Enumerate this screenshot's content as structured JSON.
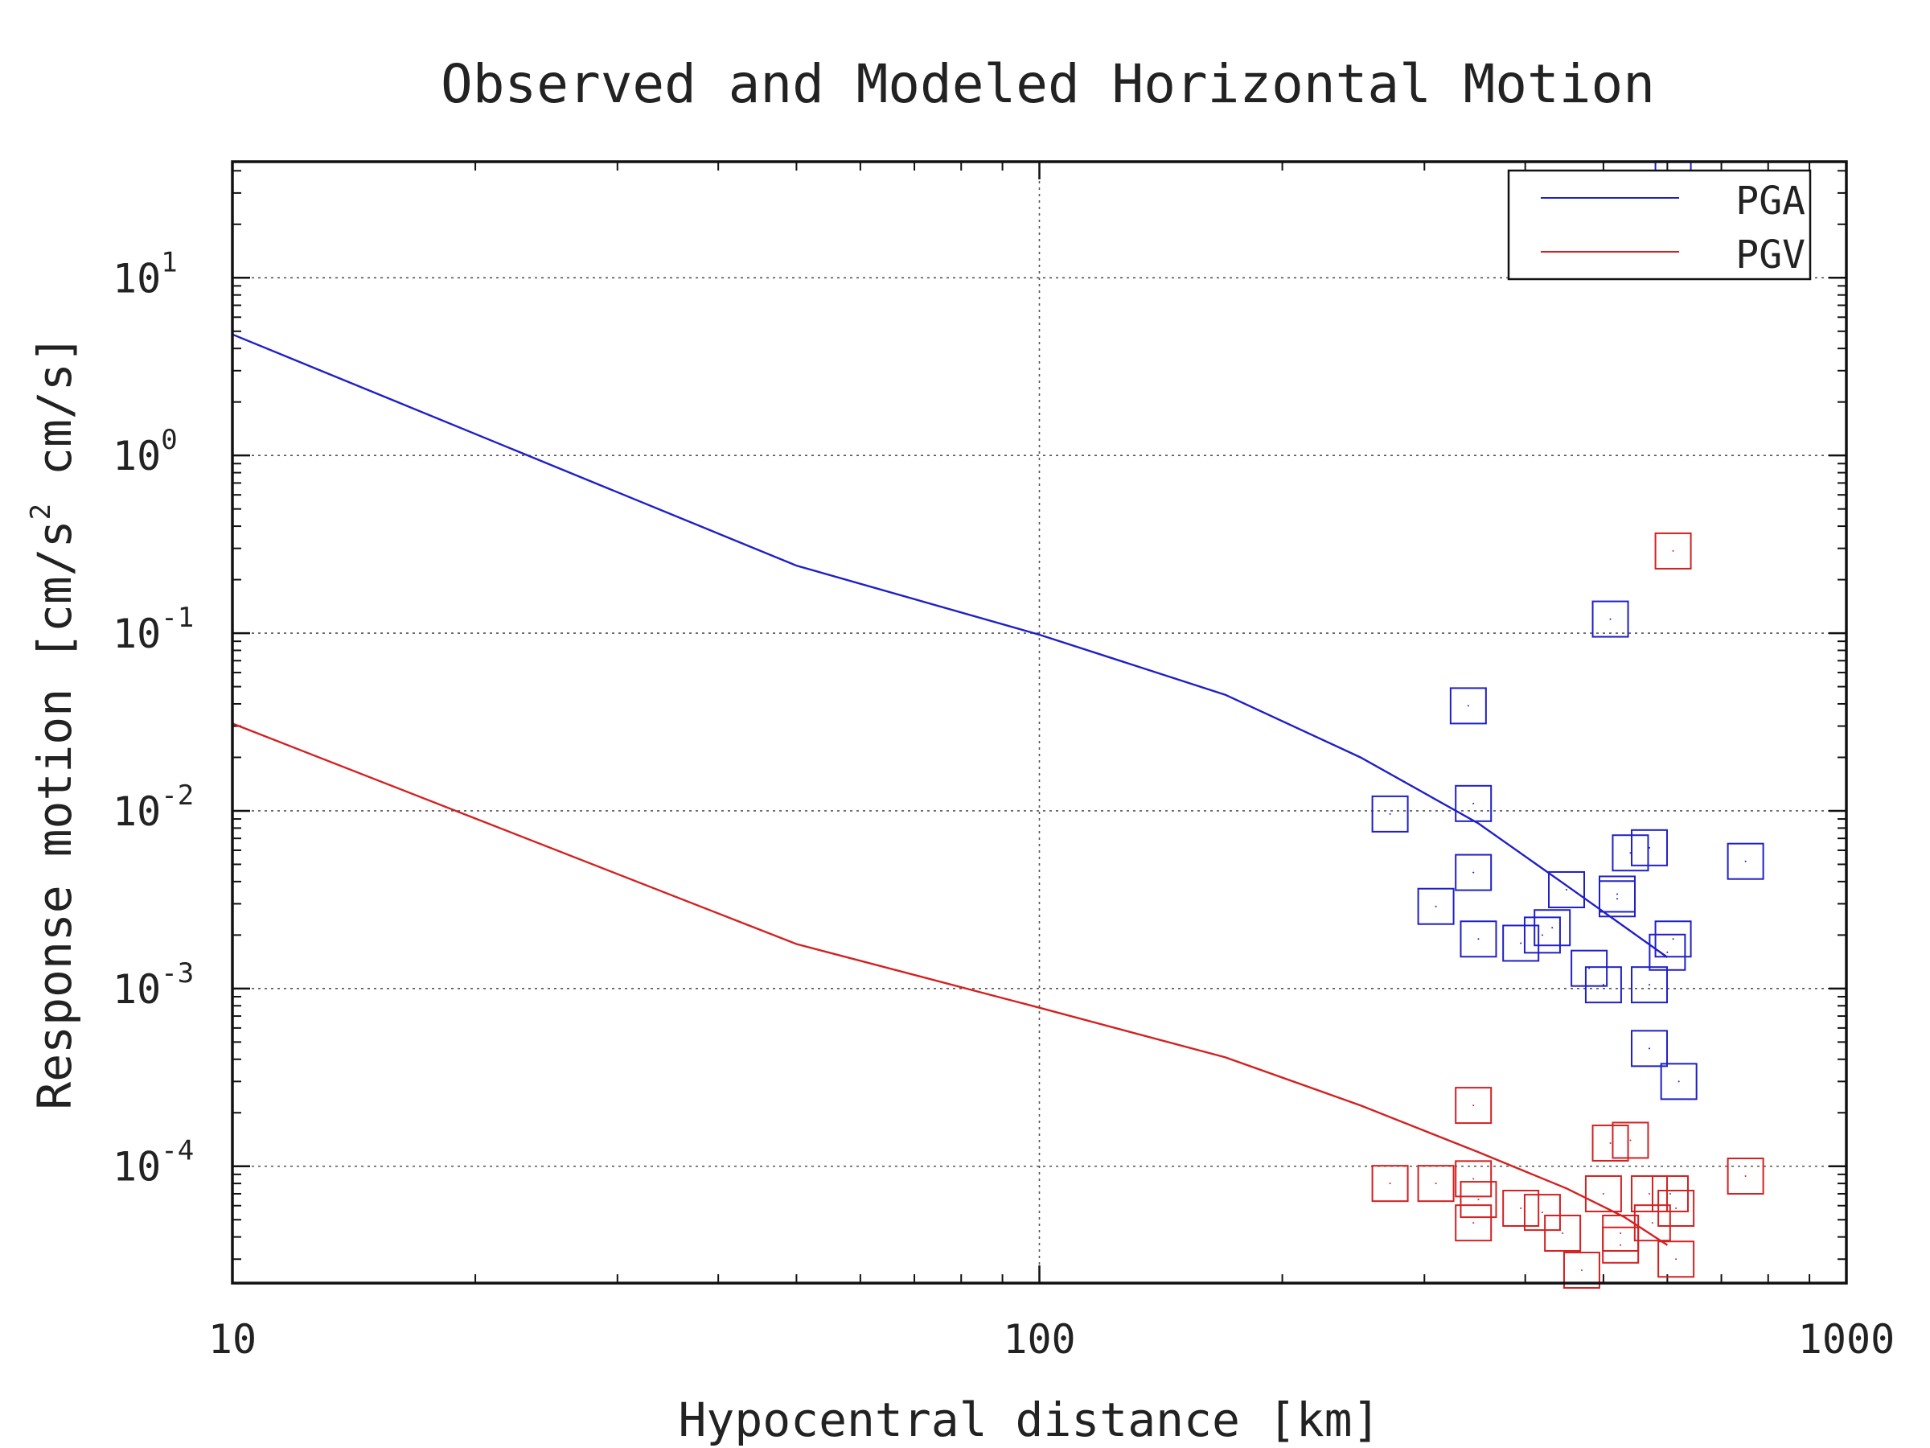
{
  "chart_data": {
    "type": "scatter",
    "title": "Observed and Modeled Horizontal Motion",
    "xlabel": "Hypocentral distance [km]",
    "ylabel": "Response motion [cm/s",
    "ylabel_sup": "2",
    "ylabel_tail": " cm/s]",
    "xscale": "log",
    "yscale": "log",
    "xlim": [
      10,
      1000
    ],
    "ylim": [
      2.2e-05,
      45
    ],
    "grid": true,
    "legend_position": "top-right",
    "x_ticks": [
      {
        "value": 10,
        "label": "10"
      },
      {
        "value": 100,
        "label": "100"
      },
      {
        "value": 1000,
        "label": "1000"
      }
    ],
    "y_ticks": [
      {
        "value": 0.0001,
        "base": "10",
        "exp": "-4"
      },
      {
        "value": 0.001,
        "base": "10",
        "exp": "-3"
      },
      {
        "value": 0.01,
        "base": "10",
        "exp": "-2"
      },
      {
        "value": 0.1,
        "base": "10",
        "exp": "-1"
      },
      {
        "value": 1,
        "base": "10",
        "exp": "0"
      },
      {
        "value": 10,
        "base": "10",
        "exp": "1"
      }
    ],
    "colors": {
      "PGA": "#1f1fc8",
      "PGV": "#d42020",
      "axis": "#111111",
      "grid": "#555555"
    },
    "series": [
      {
        "name": "PGA",
        "model": [
          [
            10,
            4.8
          ],
          [
            50,
            0.24
          ],
          [
            100,
            0.098
          ],
          [
            170,
            0.045
          ],
          [
            250,
            0.02
          ],
          [
            350,
            0.0085
          ],
          [
            450,
            0.0038
          ],
          [
            600,
            0.0015
          ]
        ],
        "observed": [
          [
            272,
            0.0096
          ],
          [
            310,
            0.0029
          ],
          [
            340,
            0.039
          ],
          [
            345,
            0.011
          ],
          [
            345,
            0.0045
          ],
          [
            350,
            0.0019
          ],
          [
            395,
            0.0018
          ],
          [
            420,
            0.002
          ],
          [
            432,
            0.0022
          ],
          [
            450,
            0.0036
          ],
          [
            480,
            0.0013
          ],
          [
            500,
            0.00105
          ],
          [
            510,
            0.12
          ],
          [
            520,
            0.0034
          ],
          [
            520,
            0.0032
          ],
          [
            540,
            0.0058
          ],
          [
            570,
            0.0062
          ],
          [
            570,
            0.00105
          ],
          [
            570,
            0.00046
          ],
          [
            600,
            0.0016
          ],
          [
            610,
            0.0019
          ],
          [
            620,
            0.0003
          ],
          [
            750,
            0.0052
          ],
          [
            610,
            36
          ]
        ]
      },
      {
        "name": "PGV",
        "model": [
          [
            10,
            0.031
          ],
          [
            50,
            0.00178
          ],
          [
            100,
            0.00078
          ],
          [
            170,
            0.00041
          ],
          [
            250,
            0.00022
          ],
          [
            350,
            0.00012
          ],
          [
            450,
            7.5e-05
          ],
          [
            530,
            5.2e-05
          ],
          [
            600,
            3.6e-05
          ]
        ],
        "observed": [
          [
            272,
            8e-05
          ],
          [
            310,
            8e-05
          ],
          [
            345,
            0.00022
          ],
          [
            345,
            8.5e-05
          ],
          [
            350,
            6.5e-05
          ],
          [
            345,
            4.8e-05
          ],
          [
            395,
            5.8e-05
          ],
          [
            420,
            5.5e-05
          ],
          [
            445,
            4.2e-05
          ],
          [
            470,
            2.6e-05
          ],
          [
            500,
            7e-05
          ],
          [
            510,
            0.000135
          ],
          [
            525,
            4.2e-05
          ],
          [
            525,
            3.6e-05
          ],
          [
            540,
            0.00014
          ],
          [
            570,
            7e-05
          ],
          [
            575,
            4.8e-05
          ],
          [
            605,
            7e-05
          ],
          [
            615,
            5.8e-05
          ],
          [
            615,
            3e-05
          ],
          [
            750,
            8.8e-05
          ],
          [
            610,
            0.29
          ]
        ]
      }
    ]
  }
}
